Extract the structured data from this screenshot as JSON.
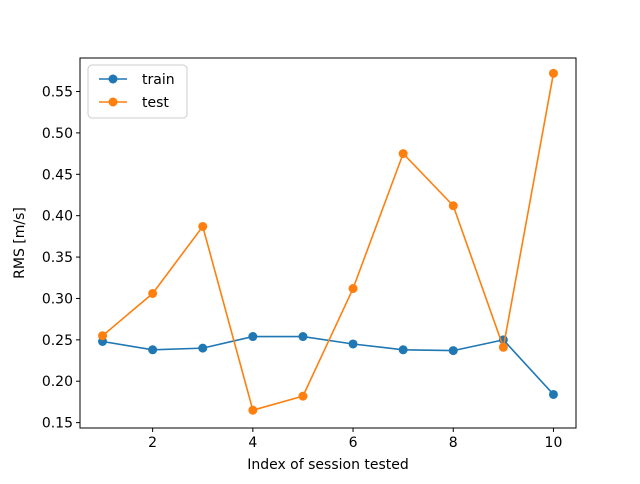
{
  "chart_data": {
    "type": "line",
    "title": "",
    "xlabel": "Index of session tested",
    "ylabel": "RMS [m/s]",
    "xlim": [
      0.55,
      10.45
    ],
    "ylim": [
      0.1435,
      0.5905
    ],
    "xticks": [
      2,
      4,
      6,
      8,
      10
    ],
    "yticks": [
      0.15,
      0.2,
      0.25,
      0.3,
      0.35,
      0.4,
      0.45,
      0.5,
      0.55
    ],
    "grid": false,
    "legend_position": "top-left",
    "x": [
      1,
      2,
      3,
      4,
      5,
      6,
      7,
      8,
      9,
      10
    ],
    "series": [
      {
        "name": "train",
        "color": "#1f77b4",
        "values": [
          0.248,
          0.238,
          0.24,
          0.254,
          0.254,
          0.245,
          0.238,
          0.237,
          0.25,
          0.184
        ]
      },
      {
        "name": "test",
        "color": "#ff7f0e",
        "values": [
          0.255,
          0.306,
          0.387,
          0.165,
          0.182,
          0.312,
          0.475,
          0.412,
          0.241,
          0.572
        ]
      }
    ]
  }
}
